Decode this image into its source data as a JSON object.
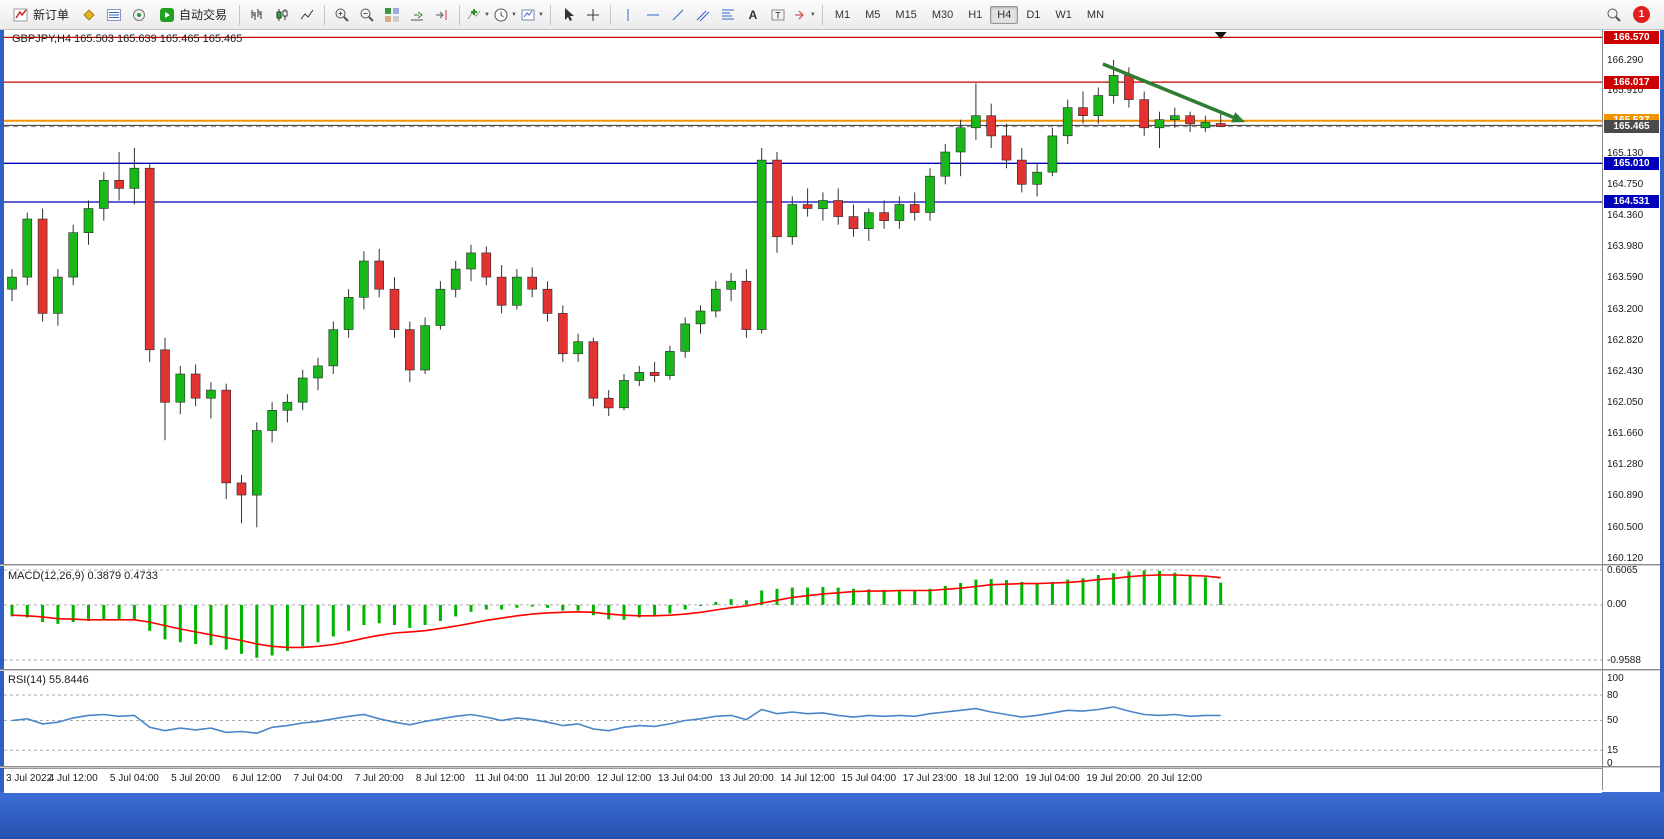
{
  "toolbar": {
    "new_order": "新订单",
    "autotrading": "自动交易",
    "timeframes": [
      "M1",
      "M5",
      "M15",
      "M30",
      "H1",
      "H4",
      "D1",
      "W1",
      "MN"
    ],
    "active_timeframe": "H4",
    "notification_count": "1"
  },
  "chart": {
    "title": "GBPJPY,H4 165.503 165.639 165.465 165.465",
    "symbol": "GBPJPY",
    "period": "H4",
    "open": "165.503",
    "high": "165.639",
    "low": "165.465",
    "close": "165.465"
  },
  "indicators": {
    "macd": {
      "label": "MACD(12,26,9) 0.3879 0.4733",
      "axis": [
        "0.6065",
        "0.00",
        "-0.9588"
      ]
    },
    "rsi": {
      "label": "RSI(14) 55.8446",
      "axis": [
        "100",
        "80",
        "50",
        "15",
        "0"
      ]
    }
  },
  "price_axis": {
    "labels": [
      "166.290",
      "165.910",
      "165.130",
      "164.750",
      "164.360",
      "163.980",
      "163.590",
      "163.200",
      "162.820",
      "162.430",
      "162.050",
      "161.660",
      "161.280",
      "160.890",
      "160.500",
      "160.120"
    ],
    "tags": [
      {
        "text": "166.570",
        "price": 166.57,
        "bg": "#cc0000"
      },
      {
        "text": "166.017",
        "price": 166.017,
        "bg": "#cc0000"
      },
      {
        "text": "165.537",
        "price": 165.537,
        "bg": "#f29400"
      },
      {
        "text": "165.465",
        "price": 165.465,
        "bg": "#4a4a4a"
      },
      {
        "text": "165.010",
        "price": 165.01,
        "bg": "#0000bb"
      },
      {
        "text": "164.531",
        "price": 164.531,
        "bg": "#0000bb"
      }
    ]
  },
  "time_axis": [
    "3 Jul 2022",
    "4 Jul 12:00",
    "5 Jul 04:00",
    "5 Jul 20:00",
    "6 Jul 12:00",
    "7 Jul 04:00",
    "7 Jul 20:00",
    "8 Jul 12:00",
    "11 Jul 04:00",
    "11 Jul 20:00",
    "12 Jul 12:00",
    "13 Jul 04:00",
    "13 Jul 20:00",
    "14 Jul 12:00",
    "15 Jul 04:00",
    "17 Jul 23:00",
    "18 Jul 12:00",
    "19 Jul 04:00",
    "19 Jul 20:00",
    "20 Jul 12:00"
  ],
  "colors": {
    "bull": "#17b817",
    "bear": "#e23232",
    "wick": "#333333",
    "macd_hist": "#00b400",
    "macd_signal": "#ff0000",
    "rsi_line": "#4a86c8",
    "frame": "#2d5fc4"
  },
  "chart_data": {
    "type": "candlestick",
    "symbol": "GBPJPY",
    "timeframe": "H4",
    "price_range": [
      160.12,
      166.6
    ],
    "candle_spacing": 15.3,
    "candle_width": 9,
    "candles": [
      [
        163.45,
        163.7,
        163.3,
        163.6
      ],
      [
        163.6,
        164.4,
        163.5,
        164.32
      ],
      [
        164.32,
        164.45,
        163.05,
        163.15
      ],
      [
        163.15,
        163.7,
        163.0,
        163.6
      ],
      [
        163.6,
        164.25,
        163.5,
        164.15
      ],
      [
        164.15,
        164.55,
        164.0,
        164.45
      ],
      [
        164.45,
        164.9,
        164.3,
        164.8
      ],
      [
        164.8,
        165.15,
        164.55,
        164.7
      ],
      [
        164.7,
        165.2,
        164.5,
        164.95
      ],
      [
        164.95,
        165.0,
        162.55,
        162.7
      ],
      [
        162.7,
        162.85,
        161.58,
        162.05
      ],
      [
        162.05,
        162.5,
        161.9,
        162.4
      ],
      [
        162.4,
        162.52,
        162.0,
        162.1
      ],
      [
        162.1,
        162.3,
        161.85,
        162.2
      ],
      [
        162.2,
        162.28,
        160.85,
        161.05
      ],
      [
        161.05,
        161.15,
        160.55,
        160.9
      ],
      [
        160.9,
        161.8,
        160.5,
        161.7
      ],
      [
        161.7,
        162.05,
        161.55,
        161.95
      ],
      [
        161.95,
        162.15,
        161.8,
        162.05
      ],
      [
        162.05,
        162.45,
        161.95,
        162.35
      ],
      [
        162.35,
        162.6,
        162.2,
        162.5
      ],
      [
        162.5,
        163.05,
        162.4,
        162.95
      ],
      [
        162.95,
        163.45,
        162.85,
        163.35
      ],
      [
        163.35,
        163.92,
        163.2,
        163.8
      ],
      [
        163.8,
        163.95,
        163.35,
        163.45
      ],
      [
        163.45,
        163.6,
        162.85,
        162.95
      ],
      [
        162.95,
        163.05,
        162.3,
        162.45
      ],
      [
        162.45,
        163.1,
        162.4,
        163.0
      ],
      [
        163.0,
        163.55,
        162.95,
        163.45
      ],
      [
        163.45,
        163.8,
        163.35,
        163.7
      ],
      [
        163.7,
        164.0,
        163.55,
        163.9
      ],
      [
        163.9,
        163.98,
        163.5,
        163.6
      ],
      [
        163.6,
        163.75,
        163.15,
        163.25
      ],
      [
        163.25,
        163.7,
        163.2,
        163.6
      ],
      [
        163.6,
        163.72,
        163.35,
        163.45
      ],
      [
        163.45,
        163.55,
        163.05,
        163.15
      ],
      [
        163.15,
        163.25,
        162.55,
        162.65
      ],
      [
        162.65,
        162.9,
        162.55,
        162.8
      ],
      [
        162.8,
        162.85,
        162.0,
        162.1
      ],
      [
        162.1,
        162.2,
        161.88,
        161.98
      ],
      [
        161.98,
        162.4,
        161.95,
        162.32
      ],
      [
        162.32,
        162.5,
        162.25,
        162.42
      ],
      [
        162.42,
        162.55,
        162.3,
        162.38
      ],
      [
        162.38,
        162.75,
        162.33,
        162.68
      ],
      [
        162.68,
        163.1,
        162.6,
        163.02
      ],
      [
        163.02,
        163.25,
        162.9,
        163.18
      ],
      [
        163.18,
        163.55,
        163.1,
        163.45
      ],
      [
        163.45,
        163.65,
        163.3,
        163.55
      ],
      [
        163.55,
        163.7,
        162.85,
        162.95
      ],
      [
        162.95,
        165.2,
        162.9,
        165.05
      ],
      [
        165.05,
        165.15,
        163.9,
        164.1
      ],
      [
        164.1,
        164.6,
        164.0,
        164.5
      ],
      [
        164.5,
        164.7,
        164.35,
        164.45
      ],
      [
        164.45,
        164.65,
        164.3,
        164.55
      ],
      [
        164.55,
        164.7,
        164.25,
        164.35
      ],
      [
        164.35,
        164.5,
        164.1,
        164.2
      ],
      [
        164.2,
        164.45,
        164.05,
        164.4
      ],
      [
        164.4,
        164.55,
        164.2,
        164.3
      ],
      [
        164.3,
        164.6,
        164.2,
        164.5
      ],
      [
        164.5,
        164.65,
        164.3,
        164.4
      ],
      [
        164.4,
        164.95,
        164.3,
        164.85
      ],
      [
        164.85,
        165.25,
        164.75,
        165.15
      ],
      [
        165.15,
        165.55,
        164.85,
        165.45
      ],
      [
        165.45,
        166.0,
        165.3,
        165.6
      ],
      [
        165.6,
        165.75,
        165.2,
        165.35
      ],
      [
        165.35,
        165.5,
        164.95,
        165.05
      ],
      [
        165.05,
        165.2,
        164.65,
        164.75
      ],
      [
        164.75,
        165.0,
        164.6,
        164.9
      ],
      [
        164.9,
        165.45,
        164.85,
        165.35
      ],
      [
        165.35,
        165.8,
        165.25,
        165.7
      ],
      [
        165.7,
        165.9,
        165.5,
        165.6
      ],
      [
        165.6,
        165.95,
        165.5,
        165.85
      ],
      [
        165.85,
        166.29,
        165.75,
        166.1
      ],
      [
        166.1,
        166.2,
        165.7,
        165.8
      ],
      [
        165.8,
        165.9,
        165.35,
        165.45
      ],
      [
        165.45,
        165.65,
        165.2,
        165.55
      ],
      [
        165.55,
        165.7,
        165.45,
        165.6
      ],
      [
        165.6,
        165.65,
        165.4,
        165.5
      ],
      [
        165.45,
        165.6,
        165.4,
        165.52
      ],
      [
        165.503,
        165.639,
        165.465,
        165.465
      ]
    ],
    "hlines": [
      {
        "price": 166.57,
        "color": "#cc0000",
        "width": 1.3
      },
      {
        "price": 166.017,
        "color": "#cc0000",
        "width": 1.3
      },
      {
        "price": 165.537,
        "color": "#f29400",
        "width": 2
      },
      {
        "price": 165.48,
        "color": "#333333",
        "width": 1
      },
      {
        "price": 165.465,
        "color": "#888888",
        "width": 1,
        "dash": true
      },
      {
        "price": 165.01,
        "color": "#0000bb",
        "width": 1.3
      },
      {
        "price": 164.531,
        "color": "#0000bb",
        "width": 1.3
      }
    ],
    "trend_arrow": {
      "i1": 71.3,
      "p1": 166.24,
      "i2": 80.6,
      "p2": 165.52,
      "color": "#2e7d32"
    },
    "top_marker_i": 79,
    "macd": {
      "range": [
        -0.9588,
        0.6065
      ],
      "levels": [
        0.6065,
        0,
        -0.9588
      ],
      "histogram": [
        -0.2,
        -0.22,
        -0.3,
        -0.33,
        -0.3,
        -0.28,
        -0.26,
        -0.25,
        -0.26,
        -0.45,
        -0.6,
        -0.65,
        -0.68,
        -0.7,
        -0.78,
        -0.85,
        -0.92,
        -0.88,
        -0.8,
        -0.72,
        -0.65,
        -0.55,
        -0.45,
        -0.35,
        -0.32,
        -0.35,
        -0.4,
        -0.35,
        -0.28,
        -0.2,
        -0.12,
        -0.08,
        -0.08,
        -0.05,
        -0.03,
        -0.05,
        -0.1,
        -0.1,
        -0.18,
        -0.25,
        -0.26,
        -0.22,
        -0.2,
        -0.15,
        -0.08,
        -0.02,
        0.05,
        0.1,
        0.08,
        0.25,
        0.28,
        0.3,
        0.3,
        0.31,
        0.3,
        0.28,
        0.27,
        0.26,
        0.26,
        0.25,
        0.28,
        0.33,
        0.38,
        0.44,
        0.45,
        0.43,
        0.4,
        0.38,
        0.4,
        0.44,
        0.46,
        0.52,
        0.55,
        0.58,
        0.6,
        0.59,
        0.56,
        0.52,
        0.48,
        0.3879
      ],
      "signal": [
        -0.18,
        -0.19,
        -0.21,
        -0.24,
        -0.25,
        -0.26,
        -0.26,
        -0.26,
        -0.26,
        -0.3,
        -0.36,
        -0.42,
        -0.47,
        -0.52,
        -0.57,
        -0.62,
        -0.68,
        -0.72,
        -0.74,
        -0.74,
        -0.72,
        -0.69,
        -0.64,
        -0.58,
        -0.53,
        -0.49,
        -0.47,
        -0.45,
        -0.41,
        -0.37,
        -0.32,
        -0.27,
        -0.23,
        -0.19,
        -0.16,
        -0.14,
        -0.13,
        -0.12,
        -0.13,
        -0.16,
        -0.18,
        -0.19,
        -0.19,
        -0.18,
        -0.16,
        -0.13,
        -0.09,
        -0.05,
        -0.02,
        0.03,
        0.08,
        0.13,
        0.16,
        0.19,
        0.21,
        0.23,
        0.24,
        0.24,
        0.25,
        0.25,
        0.25,
        0.27,
        0.29,
        0.32,
        0.35,
        0.36,
        0.37,
        0.37,
        0.38,
        0.39,
        0.41,
        0.44,
        0.46,
        0.49,
        0.51,
        0.52,
        0.52,
        0.51,
        0.5,
        0.4733
      ]
    },
    "rsi": {
      "range": [
        0,
        100
      ],
      "levels": [
        80,
        50,
        15
      ],
      "values": [
        50,
        52,
        46,
        48,
        53,
        56,
        57,
        55,
        56,
        42,
        38,
        41,
        39,
        41,
        36,
        37,
        35,
        42,
        44,
        47,
        49,
        52,
        55,
        57,
        52,
        48,
        45,
        49,
        52,
        55,
        57,
        54,
        50,
        53,
        51,
        48,
        44,
        46,
        40,
        38,
        42,
        44,
        43,
        46,
        50,
        52,
        55,
        56,
        51,
        63,
        58,
        60,
        58,
        59,
        56,
        54,
        56,
        55,
        56,
        55,
        58,
        60,
        62,
        64,
        60,
        57,
        54,
        56,
        59,
        62,
        61,
        63,
        66,
        61,
        57,
        56,
        57,
        55,
        56,
        55.84
      ]
    }
  }
}
